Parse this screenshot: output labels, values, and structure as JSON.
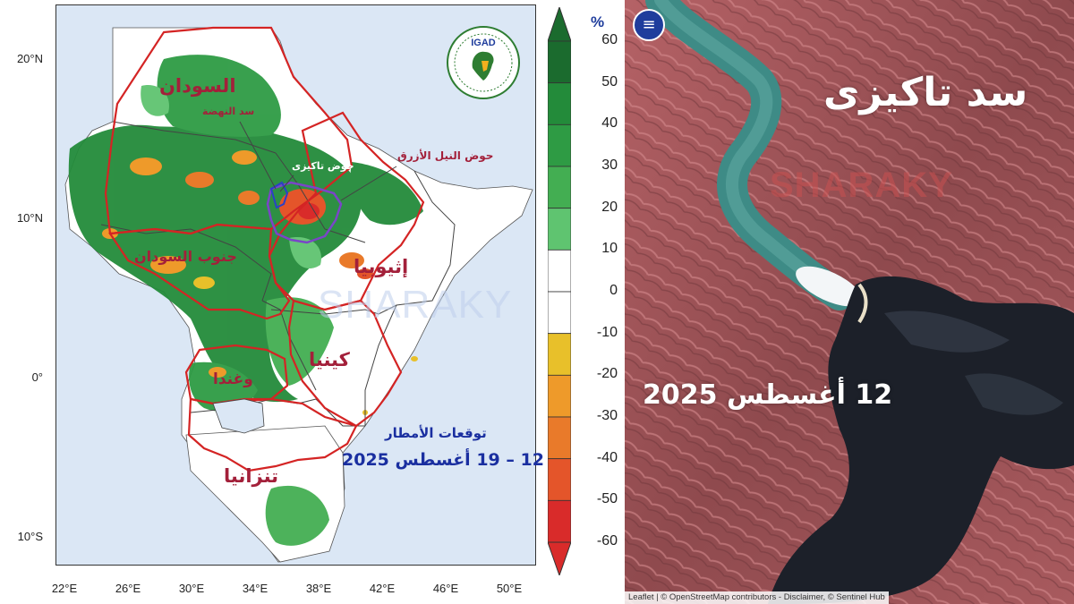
{
  "left_panel": {
    "lat_labels": [
      "20°N",
      "10°N",
      "0°",
      "10°S"
    ],
    "lon_labels": [
      "22°E",
      "26°E",
      "30°E",
      "34°E",
      "38°E",
      "42°E",
      "46°E",
      "50°E"
    ],
    "colorbar": {
      "unit": "%",
      "ticks": [
        "60",
        "50",
        "40",
        "30",
        "20",
        "10",
        "0",
        "-10",
        "-20",
        "-30",
        "-40",
        "-50",
        "-60"
      ],
      "colors": [
        "#1b6b2e",
        "#238b3a",
        "#2e9b44",
        "#43ae52",
        "#5fc470",
        "#ffffff",
        "#ffffff",
        "#e8c02a",
        "#ee9a2a",
        "#e97a2a",
        "#e4552a",
        "#d92b2a"
      ]
    },
    "country_labels": {
      "sudan": "السودان",
      "south_sudan": "جنوب السودان",
      "ethiopia": "إثيوبيا",
      "kenya": "كينيا",
      "uganda": "وغندا",
      "tanzania": "تنزانيا"
    },
    "annotations": {
      "gerd": "سد النهضة",
      "tekeze": "حوض تاكيزى",
      "blue_nile_basin": "حوض النيل الأزرق"
    },
    "forecast_title": "توقعات الأمطار",
    "forecast_dates": "12 – 19 أغسطس 2025",
    "watermark": "SHARAKY",
    "logo_text": "IGAD",
    "colors": {
      "map_background": "#dbe7f5",
      "land": "#ffffff",
      "wet": "#238b3a",
      "dry": "#e97a2a",
      "country_outline": "#d42424",
      "basin_outline": "#7a45c8"
    }
  },
  "right_panel": {
    "title": "سد تاكيزى",
    "date": "12 أغسطس 2025",
    "watermark": "SHARAKY",
    "attribution": "Leaflet | © OpenStreetMap contributors - Disclaimer, © Sentinel Hub",
    "menu_icon": "menu-icon",
    "colors": {
      "terrain": "#a04f52",
      "river": "#3e8b86",
      "reservoir": "#1c2029"
    }
  }
}
